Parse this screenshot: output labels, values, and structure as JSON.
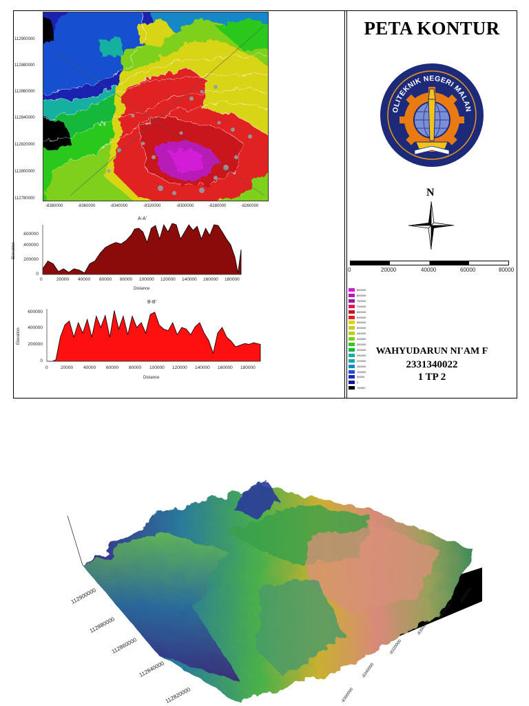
{
  "title": "PETA KONTUR",
  "logo_text": "POLITEKNIK NEGERI MALANG",
  "north_label": "N",
  "author": {
    "name": "WAHYUDARUN NI'AM F",
    "nim": "2331340022",
    "class": "1 TP 2"
  },
  "scale_bar": {
    "labels": [
      "0",
      "20000",
      "40000",
      "60000",
      "80000"
    ]
  },
  "map": {
    "y_ticks": [
      "112900000",
      "112880000",
      "112860000",
      "112840000",
      "112820000",
      "112800000",
      "112780000"
    ],
    "x_ticks": [
      "-8380000",
      "-8360000",
      "-8340000",
      "-8320000",
      "-8300000",
      "-8280000",
      "-8260000"
    ]
  },
  "legend": [
    {
      "label": "850000",
      "color": "#d21ad6"
    },
    {
      "label": "800000",
      "color": "#b81ab8"
    },
    {
      "label": "750000",
      "color": "#9d1aa0"
    },
    {
      "label": "700000",
      "color": "#e0185a"
    },
    {
      "label": "650000",
      "color": "#c8141c"
    },
    {
      "label": "600000",
      "color": "#e02020"
    },
    {
      "label": "550000",
      "color": "#d8d412"
    },
    {
      "label": "500000",
      "color": "#cfc816"
    },
    {
      "label": "450000",
      "color": "#b4d21a"
    },
    {
      "label": "400000",
      "color": "#7ed01a"
    },
    {
      "label": "350000",
      "color": "#2cc81a"
    },
    {
      "label": "300000",
      "color": "#16b83a"
    },
    {
      "label": "250000",
      "color": "#14b0a0"
    },
    {
      "label": "200000",
      "color": "#12a8b0"
    },
    {
      "label": "150000",
      "color": "#1288c8"
    },
    {
      "label": "100000",
      "color": "#1450d0"
    },
    {
      "label": "50000",
      "color": "#1a22c0"
    },
    {
      "label": "0",
      "color": "#1414a8"
    },
    {
      "label": "-50000",
      "color": "#000000"
    }
  ],
  "chart_data": [
    {
      "type": "area",
      "title": "A-A'",
      "xlabel": "Distance",
      "ylabel": "Elevation",
      "xlim": [
        0,
        190000
      ],
      "ylim": [
        0,
        700000
      ],
      "x_ticks": [
        "0",
        "20000",
        "40000",
        "60000",
        "80000",
        "100000",
        "120000",
        "140000",
        "160000",
        "180000"
      ],
      "y_ticks": [
        "0",
        "200000",
        "400000",
        "600000"
      ],
      "color": "#8b0a0a",
      "x": [
        0,
        5000,
        10000,
        15000,
        20000,
        25000,
        30000,
        35000,
        40000,
        45000,
        50000,
        55000,
        60000,
        65000,
        70000,
        75000,
        80000,
        85000,
        88000,
        92000,
        96000,
        100000,
        104000,
        108000,
        112000,
        116000,
        120000,
        124000,
        128000,
        132000,
        136000,
        140000,
        144000,
        148000,
        152000,
        156000,
        160000,
        164000,
        168000,
        172000,
        176000,
        180000,
        184000,
        187000,
        190000
      ],
      "y": [
        80000,
        190000,
        150000,
        40000,
        80000,
        30000,
        80000,
        60000,
        20000,
        150000,
        190000,
        300000,
        380000,
        420000,
        450000,
        430000,
        480000,
        560000,
        640000,
        650000,
        600000,
        450000,
        650000,
        690000,
        500000,
        700000,
        600000,
        720000,
        700000,
        500000,
        600000,
        700000,
        620000,
        680000,
        500000,
        650000,
        550000,
        700000,
        690000,
        600000,
        500000,
        420000,
        250000,
        20000,
        350000
      ]
    },
    {
      "type": "area",
      "title": "B-B'",
      "xlabel": "Distance",
      "ylabel": "Elevation",
      "xlim": [
        0,
        190000
      ],
      "ylim": [
        0,
        650000
      ],
      "x_ticks": [
        "0",
        "20000",
        "40000",
        "60000",
        "80000",
        "100000",
        "120000",
        "140000",
        "160000",
        "180000"
      ],
      "y_ticks": [
        "0",
        "200000",
        "400000",
        "600000"
      ],
      "color": "#ff1010",
      "x": [
        0,
        5000,
        8000,
        12000,
        16000,
        20000,
        24000,
        28000,
        32000,
        36000,
        40000,
        44000,
        48000,
        52000,
        56000,
        60000,
        64000,
        68000,
        72000,
        76000,
        80000,
        84000,
        88000,
        92000,
        96000,
        100000,
        104000,
        108000,
        112000,
        116000,
        120000,
        124000,
        128000,
        132000,
        136000,
        140000,
        144000,
        148000,
        152000,
        156000,
        160000,
        164000,
        168000,
        172000,
        176000,
        180000,
        184000,
        190000
      ],
      "y": [
        0,
        0,
        20000,
        300000,
        450000,
        500000,
        300000,
        480000,
        350000,
        520000,
        300000,
        560000,
        420000,
        570000,
        300000,
        630000,
        400000,
        560000,
        330000,
        560000,
        420000,
        480000,
        350000,
        580000,
        610000,
        450000,
        400000,
        380000,
        480000,
        330000,
        420000,
        400000,
        330000,
        430000,
        480000,
        350000,
        260000,
        100000,
        350000,
        420000,
        300000,
        250000,
        180000,
        200000,
        220000,
        210000,
        230000,
        210000
      ]
    }
  ],
  "surface3d": {
    "y_ticks": [
      "112900000",
      "112880000",
      "112860000",
      "112840000",
      "112820000"
    ],
    "x_ticks": [
      "-8260000",
      "-8280000",
      "-8300000",
      "-8320000",
      "-8340000",
      "-8360000"
    ]
  }
}
